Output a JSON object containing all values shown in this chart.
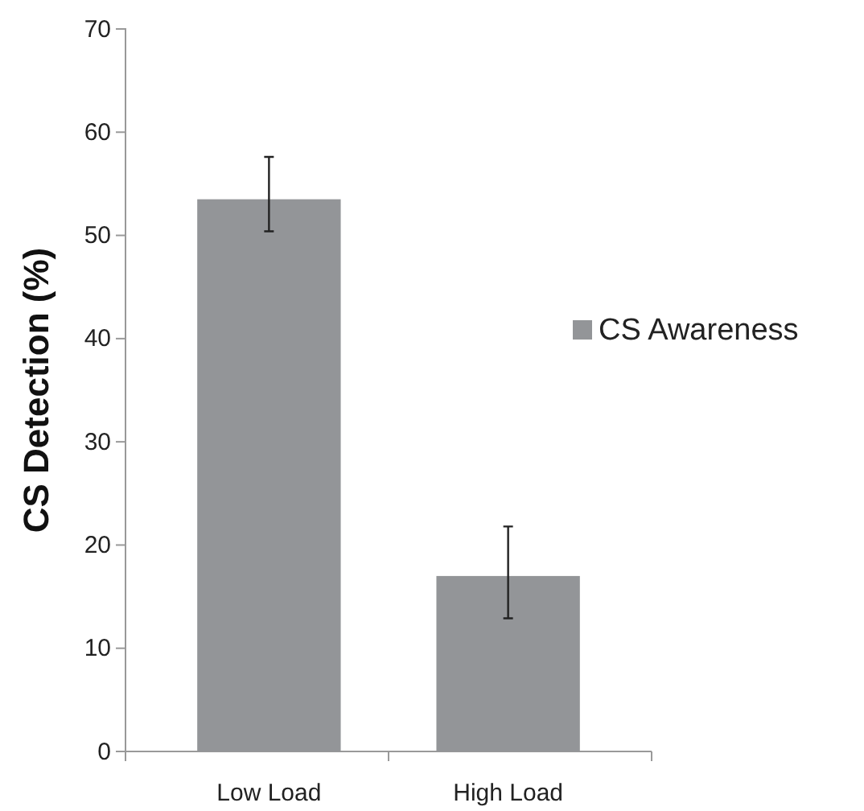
{
  "chart_data": {
    "type": "bar",
    "ylabel": "CS Detection (%)",
    "categories": [
      "Low Load",
      "High Load"
    ],
    "series": [
      {
        "name": "CS Awareness",
        "color": "#939598",
        "values": [
          53.5,
          17.0
        ],
        "errors": [
          [
            50.4,
            57.6
          ],
          [
            12.9,
            21.8
          ]
        ]
      }
    ],
    "ylim": [
      0,
      70
    ],
    "yticks": [
      0,
      10,
      20,
      30,
      40,
      50,
      60,
      70
    ],
    "legend": "right",
    "grid": false
  }
}
